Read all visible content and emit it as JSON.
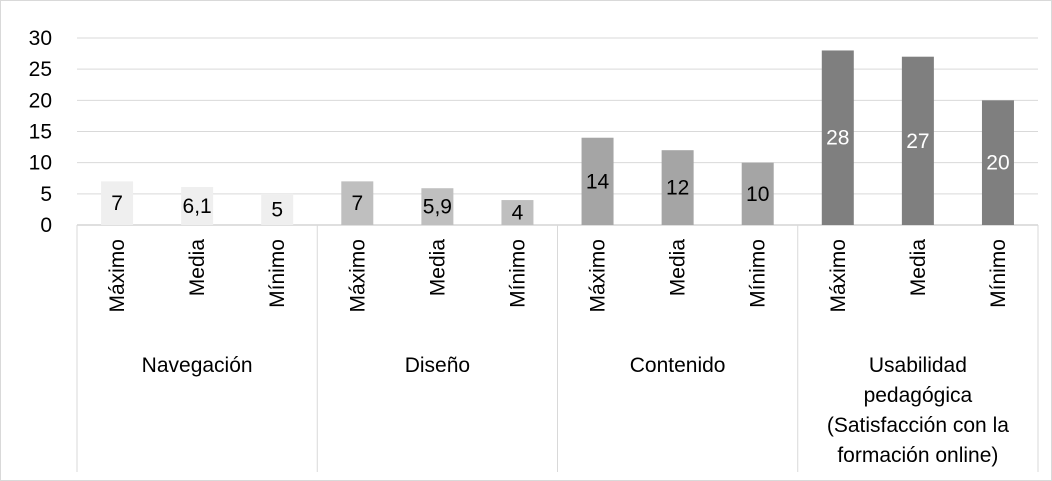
{
  "chart_data": {
    "type": "bar",
    "groups": [
      {
        "label": "Navegación",
        "color": "#efefef",
        "label_color": "#000000"
      },
      {
        "label": "Diseño",
        "color": "#bfbfbf",
        "label_color": "#000000"
      },
      {
        "label": "Contenido",
        "color": "#a5a5a5",
        "label_color": "#000000"
      },
      {
        "label": "Usabilidad pedagógica (Satisfacción con la formación online)",
        "color": "#7f7f7f",
        "label_color": "#ffffff"
      }
    ],
    "categories": [
      "Máximo",
      "Media",
      "Mínimo"
    ],
    "values": [
      [
        7,
        6.1,
        5
      ],
      [
        7,
        5.9,
        4
      ],
      [
        14,
        12,
        10
      ],
      [
        28,
        27,
        20
      ]
    ],
    "value_labels": [
      [
        "7",
        "6,1",
        "5"
      ],
      [
        "7",
        "5,9",
        "4"
      ],
      [
        "14",
        "12",
        "10"
      ],
      [
        "28",
        "27",
        "20"
      ]
    ],
    "group_label_lines": [
      [
        "Navegación"
      ],
      [
        "Diseño"
      ],
      [
        "Contenido"
      ],
      [
        "Usabilidad",
        "pedagógica",
        "(Satisfacción con la",
        "formación online)"
      ]
    ],
    "ylim": [
      0,
      30
    ],
    "yticks": [
      0,
      5,
      10,
      15,
      20,
      25,
      30
    ],
    "grid": true,
    "title": "",
    "xlabel": "",
    "ylabel": ""
  }
}
